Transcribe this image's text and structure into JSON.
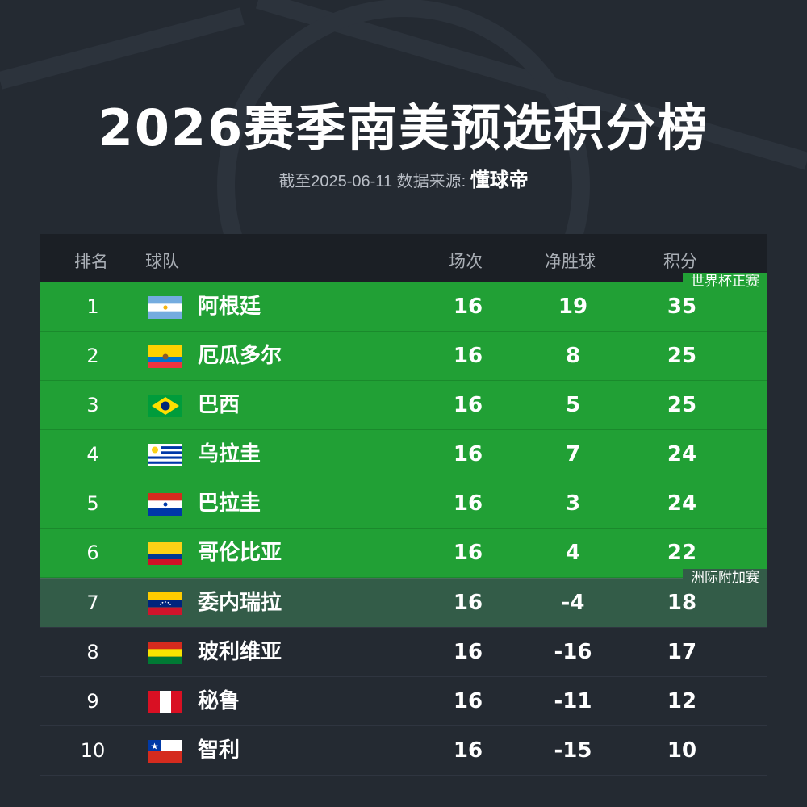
{
  "title": "2026赛季南美预选积分榜",
  "subtitle": {
    "prefix": "截至2025-06-11 数据来源:",
    "brand": "懂球帝"
  },
  "headers": {
    "rank": "排名",
    "team": "球队",
    "played": "场次",
    "gd": "净胜球",
    "pts": "积分"
  },
  "tags": {
    "world_cup": "世界杯正赛",
    "playoff": "洲际附加赛"
  },
  "colors": {
    "qualify": "#21a035",
    "playoff": "#335c48",
    "background": "#242a32"
  },
  "rows": [
    {
      "rank": "1",
      "team": "阿根廷",
      "played": "16",
      "gd": "19",
      "pts": "35",
      "flag": "argentina-flag"
    },
    {
      "rank": "2",
      "team": "厄瓜多尔",
      "played": "16",
      "gd": "8",
      "pts": "25",
      "flag": "ecuador-flag"
    },
    {
      "rank": "3",
      "team": "巴西",
      "played": "16",
      "gd": "5",
      "pts": "25",
      "flag": "brazil-flag"
    },
    {
      "rank": "4",
      "team": "乌拉圭",
      "played": "16",
      "gd": "7",
      "pts": "24",
      "flag": "uruguay-flag"
    },
    {
      "rank": "5",
      "team": "巴拉圭",
      "played": "16",
      "gd": "3",
      "pts": "24",
      "flag": "paraguay-flag"
    },
    {
      "rank": "6",
      "team": "哥伦比亚",
      "played": "16",
      "gd": "4",
      "pts": "22",
      "flag": "colombia-flag"
    },
    {
      "rank": "7",
      "team": "委内瑞拉",
      "played": "16",
      "gd": "-4",
      "pts": "18",
      "flag": "venezuela-flag"
    },
    {
      "rank": "8",
      "team": "玻利维亚",
      "played": "16",
      "gd": "-16",
      "pts": "17",
      "flag": "bolivia-flag"
    },
    {
      "rank": "9",
      "team": "秘鲁",
      "played": "16",
      "gd": "-11",
      "pts": "12",
      "flag": "peru-flag"
    },
    {
      "rank": "10",
      "team": "智利",
      "played": "16",
      "gd": "-15",
      "pts": "10",
      "flag": "chile-flag"
    }
  ]
}
